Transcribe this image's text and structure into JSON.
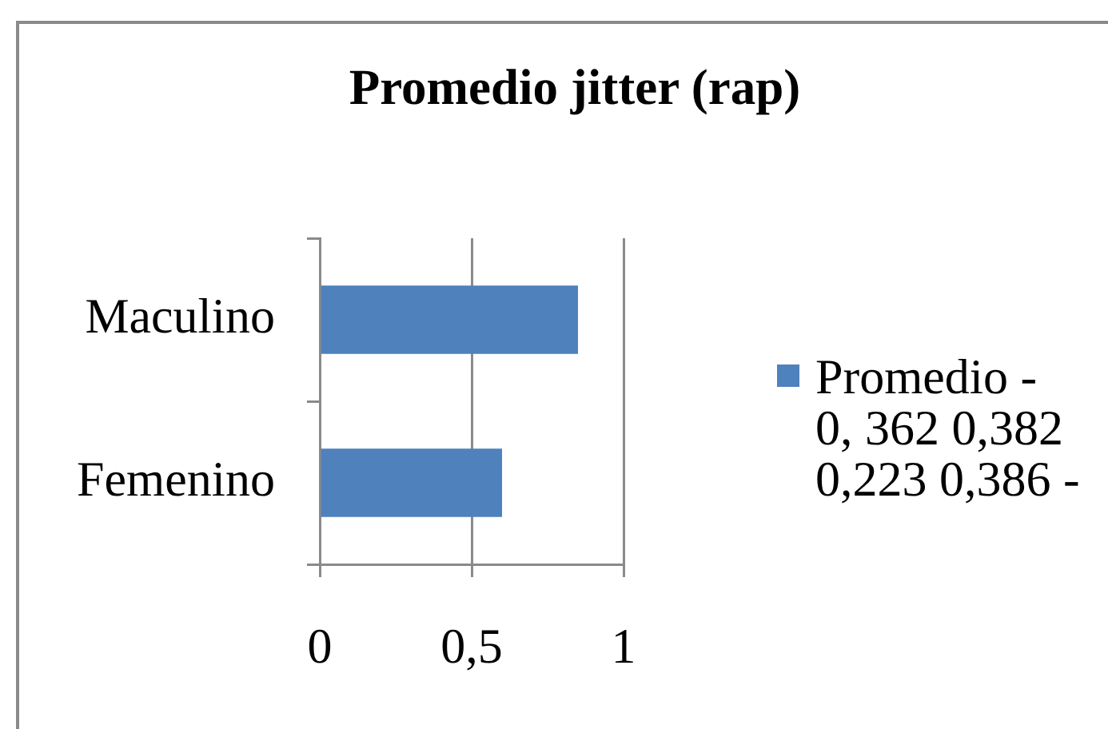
{
  "chart_data": {
    "type": "bar",
    "title": "Promedio jitter (rap)",
    "orientation": "horizontal",
    "categories": [
      "Maculino",
      "Femenino"
    ],
    "series": [
      {
        "name": "Promedio - 0, 362 0,382 0,223 0,386 -",
        "color": "#4f81bd",
        "values": [
          0.85,
          0.6
        ]
      }
    ],
    "xlim": [
      0,
      1
    ],
    "xticks": [
      0,
      {
        "value": 0.5,
        "label": "0,5"
      },
      1
    ],
    "grid": "x",
    "legend": "right"
  }
}
